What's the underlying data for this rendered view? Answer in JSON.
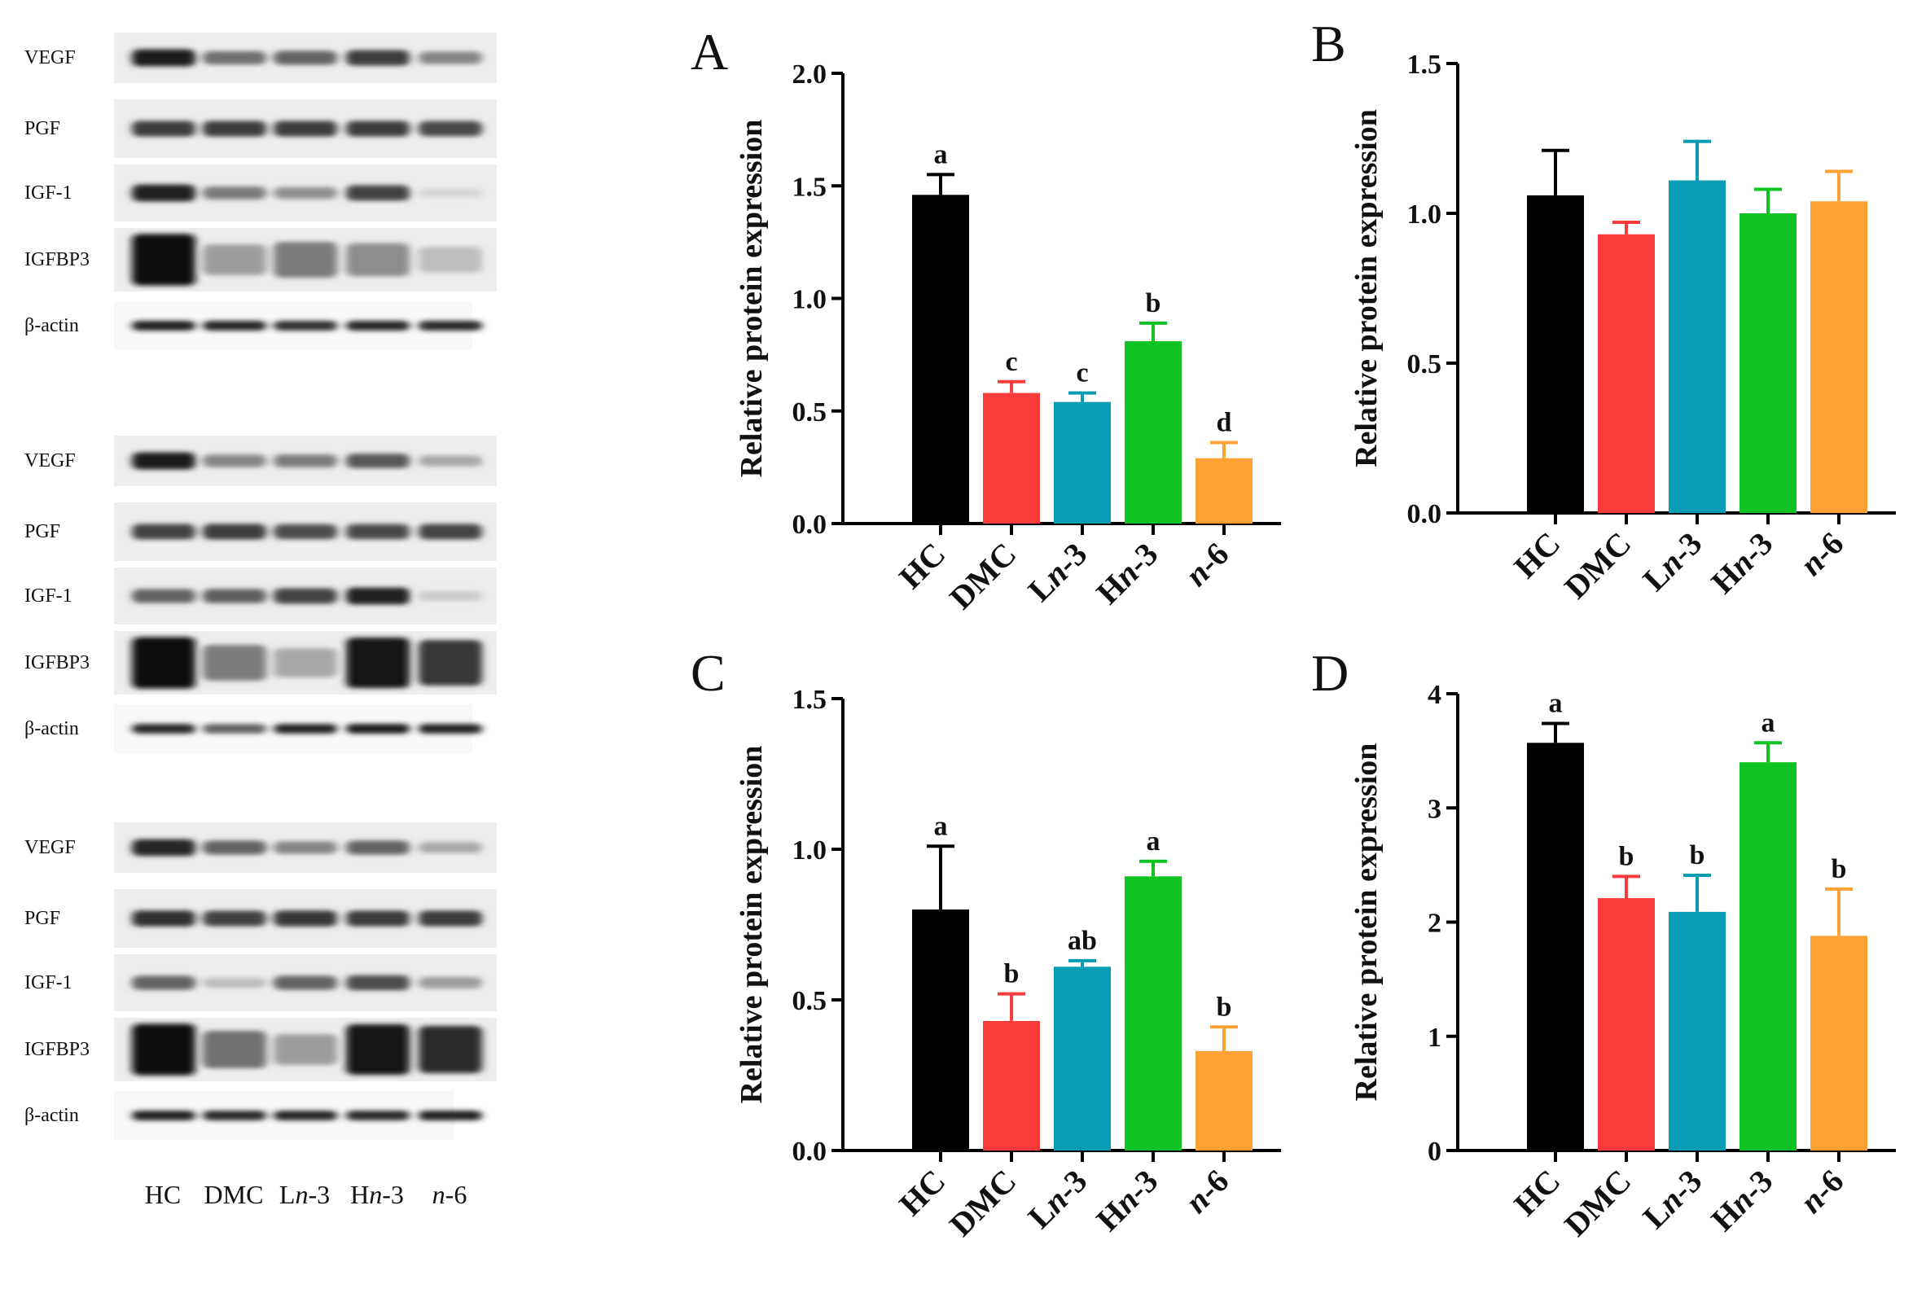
{
  "blots": {
    "lane_labels": [
      {
        "pre": "",
        "it": "",
        "post": "HC"
      },
      {
        "pre": "",
        "it": "",
        "post": "DMC"
      },
      {
        "pre": "L",
        "it": "n",
        "post": "-3"
      },
      {
        "pre": "H",
        "it": "n",
        "post": "-3"
      },
      {
        "pre": "",
        "it": "n",
        "post": "-6"
      }
    ],
    "panels": [
      {
        "rows": [
          {
            "label": "VEGF",
            "intensity": [
              0.92,
              0.55,
              0.6,
              0.78,
              0.45
            ]
          },
          {
            "label": "PGF",
            "intensity": [
              0.78,
              0.78,
              0.78,
              0.78,
              0.72
            ]
          },
          {
            "label": "IGF-1",
            "intensity": [
              0.9,
              0.5,
              0.4,
              0.75,
              0.1
            ]
          },
          {
            "label": "IGFBP3",
            "intensity": [
              0.98,
              0.35,
              0.5,
              0.42,
              0.2
            ]
          },
          {
            "label": "β-actin",
            "intensity": [
              0.9,
              0.88,
              0.82,
              0.88,
              0.85
            ]
          }
        ]
      },
      {
        "rows": [
          {
            "label": "VEGF",
            "intensity": [
              0.92,
              0.45,
              0.5,
              0.65,
              0.3
            ]
          },
          {
            "label": "PGF",
            "intensity": [
              0.75,
              0.78,
              0.7,
              0.72,
              0.74
            ]
          },
          {
            "label": "IGF-1",
            "intensity": [
              0.6,
              0.62,
              0.75,
              0.9,
              0.15
            ]
          },
          {
            "label": "IGFBP3",
            "intensity": [
              0.98,
              0.5,
              0.3,
              0.95,
              0.8
            ]
          },
          {
            "label": "β-actin",
            "intensity": [
              0.85,
              0.6,
              0.88,
              0.92,
              0.88
            ]
          }
        ]
      },
      {
        "rows": [
          {
            "label": "VEGF",
            "intensity": [
              0.88,
              0.6,
              0.45,
              0.6,
              0.3
            ]
          },
          {
            "label": "PGF",
            "intensity": [
              0.82,
              0.75,
              0.8,
              0.78,
              0.78
            ]
          },
          {
            "label": "IGF-1",
            "intensity": [
              0.6,
              0.2,
              0.6,
              0.7,
              0.35
            ]
          },
          {
            "label": "IGFBP3",
            "intensity": [
              0.98,
              0.55,
              0.35,
              0.95,
              0.85
            ]
          },
          {
            "label": "β-actin",
            "intensity": [
              0.9,
              0.85,
              0.88,
              0.85,
              0.9
            ]
          }
        ]
      }
    ]
  },
  "categories": [
    {
      "pre": "HC",
      "it": "",
      "post": ""
    },
    {
      "pre": "DMC",
      "it": "",
      "post": ""
    },
    {
      "pre": "L",
      "it": "n",
      "post": "-3"
    },
    {
      "pre": "H",
      "it": "n",
      "post": "-3"
    },
    {
      "pre": "",
      "it": "n",
      "post": "-6"
    }
  ],
  "colors": [
    "#000000",
    "#f83c3c",
    "#0a9bb5",
    "#0ec322",
    "#ffa133"
  ],
  "chart_data": [
    {
      "type": "bar",
      "panel": "A",
      "ylabel": "Relative protein expression",
      "ylim": [
        0,
        2.0
      ],
      "ticks": [
        "0.0",
        "0.5",
        "1.0",
        "1.5",
        "2.0"
      ],
      "categories": [
        "HC",
        "DMC",
        "Ln-3",
        "Hn-3",
        "n-6"
      ],
      "values": [
        1.46,
        0.58,
        0.54,
        0.81,
        0.29
      ],
      "errors": [
        0.09,
        0.05,
        0.04,
        0.08,
        0.07
      ],
      "letters": [
        "a",
        "c",
        "c",
        "b",
        "d"
      ]
    },
    {
      "type": "bar",
      "panel": "B",
      "ylabel": "Relative protein expression",
      "ylim": [
        0,
        1.5
      ],
      "ticks": [
        "0.0",
        "0.5",
        "1.0",
        "1.5"
      ],
      "categories": [
        "HC",
        "DMC",
        "Ln-3",
        "Hn-3",
        "n-6"
      ],
      "values": [
        1.06,
        0.93,
        1.11,
        1.0,
        1.04
      ],
      "errors": [
        0.15,
        0.04,
        0.13,
        0.08,
        0.1
      ],
      "letters": [
        "",
        "",
        "",
        "",
        ""
      ]
    },
    {
      "type": "bar",
      "panel": "C",
      "ylabel": "Relative protein expression",
      "ylim": [
        0,
        1.5
      ],
      "ticks": [
        "0.0",
        "0.5",
        "1.0",
        "1.5"
      ],
      "categories": [
        "HC",
        "DMC",
        "Ln-3",
        "Hn-3",
        "n-6"
      ],
      "values": [
        0.8,
        0.43,
        0.61,
        0.91,
        0.33
      ],
      "errors": [
        0.21,
        0.09,
        0.02,
        0.05,
        0.08
      ],
      "letters": [
        "a",
        "b",
        "ab",
        "a",
        "b"
      ]
    },
    {
      "type": "bar",
      "panel": "D",
      "ylabel": "Relative protein expression",
      "ylim": [
        0,
        4
      ],
      "ticks": [
        "0",
        "1",
        "2",
        "3",
        "4"
      ],
      "categories": [
        "HC",
        "DMC",
        "Ln-3",
        "Hn-3",
        "n-6"
      ],
      "values": [
        3.57,
        2.21,
        2.09,
        3.4,
        1.88
      ],
      "errors": [
        0.17,
        0.19,
        0.32,
        0.17,
        0.41
      ],
      "letters": [
        "a",
        "b",
        "b",
        "a",
        "b"
      ]
    }
  ]
}
